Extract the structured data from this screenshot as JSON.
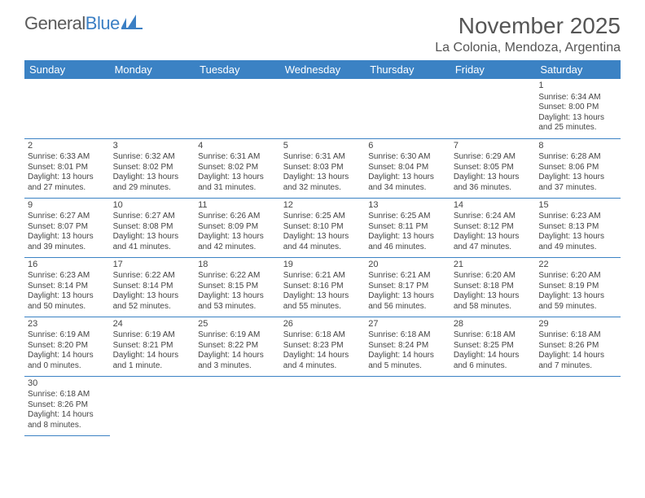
{
  "brand": {
    "part1": "General",
    "part2": "Blue"
  },
  "title": "November 2025",
  "location": "La Colonia, Mendoza, Argentina",
  "colors": {
    "header_bg": "#3b82c4",
    "header_text": "#ffffff",
    "cell_border": "#3b82c4",
    "text": "#444444",
    "title_text": "#555555",
    "background": "#ffffff"
  },
  "typography": {
    "title_fontsize": 28,
    "location_fontsize": 16,
    "header_fontsize": 13,
    "cell_fontsize": 10,
    "daynum_fontsize": 11
  },
  "weekdays": [
    "Sunday",
    "Monday",
    "Tuesday",
    "Wednesday",
    "Thursday",
    "Friday",
    "Saturday"
  ],
  "weeks": [
    [
      null,
      null,
      null,
      null,
      null,
      null,
      {
        "day": "1",
        "sunrise": "Sunrise: 6:34 AM",
        "sunset": "Sunset: 8:00 PM",
        "daylight": "Daylight: 13 hours and 25 minutes."
      }
    ],
    [
      {
        "day": "2",
        "sunrise": "Sunrise: 6:33 AM",
        "sunset": "Sunset: 8:01 PM",
        "daylight": "Daylight: 13 hours and 27 minutes."
      },
      {
        "day": "3",
        "sunrise": "Sunrise: 6:32 AM",
        "sunset": "Sunset: 8:02 PM",
        "daylight": "Daylight: 13 hours and 29 minutes."
      },
      {
        "day": "4",
        "sunrise": "Sunrise: 6:31 AM",
        "sunset": "Sunset: 8:02 PM",
        "daylight": "Daylight: 13 hours and 31 minutes."
      },
      {
        "day": "5",
        "sunrise": "Sunrise: 6:31 AM",
        "sunset": "Sunset: 8:03 PM",
        "daylight": "Daylight: 13 hours and 32 minutes."
      },
      {
        "day": "6",
        "sunrise": "Sunrise: 6:30 AM",
        "sunset": "Sunset: 8:04 PM",
        "daylight": "Daylight: 13 hours and 34 minutes."
      },
      {
        "day": "7",
        "sunrise": "Sunrise: 6:29 AM",
        "sunset": "Sunset: 8:05 PM",
        "daylight": "Daylight: 13 hours and 36 minutes."
      },
      {
        "day": "8",
        "sunrise": "Sunrise: 6:28 AM",
        "sunset": "Sunset: 8:06 PM",
        "daylight": "Daylight: 13 hours and 37 minutes."
      }
    ],
    [
      {
        "day": "9",
        "sunrise": "Sunrise: 6:27 AM",
        "sunset": "Sunset: 8:07 PM",
        "daylight": "Daylight: 13 hours and 39 minutes."
      },
      {
        "day": "10",
        "sunrise": "Sunrise: 6:27 AM",
        "sunset": "Sunset: 8:08 PM",
        "daylight": "Daylight: 13 hours and 41 minutes."
      },
      {
        "day": "11",
        "sunrise": "Sunrise: 6:26 AM",
        "sunset": "Sunset: 8:09 PM",
        "daylight": "Daylight: 13 hours and 42 minutes."
      },
      {
        "day": "12",
        "sunrise": "Sunrise: 6:25 AM",
        "sunset": "Sunset: 8:10 PM",
        "daylight": "Daylight: 13 hours and 44 minutes."
      },
      {
        "day": "13",
        "sunrise": "Sunrise: 6:25 AM",
        "sunset": "Sunset: 8:11 PM",
        "daylight": "Daylight: 13 hours and 46 minutes."
      },
      {
        "day": "14",
        "sunrise": "Sunrise: 6:24 AM",
        "sunset": "Sunset: 8:12 PM",
        "daylight": "Daylight: 13 hours and 47 minutes."
      },
      {
        "day": "15",
        "sunrise": "Sunrise: 6:23 AM",
        "sunset": "Sunset: 8:13 PM",
        "daylight": "Daylight: 13 hours and 49 minutes."
      }
    ],
    [
      {
        "day": "16",
        "sunrise": "Sunrise: 6:23 AM",
        "sunset": "Sunset: 8:14 PM",
        "daylight": "Daylight: 13 hours and 50 minutes."
      },
      {
        "day": "17",
        "sunrise": "Sunrise: 6:22 AM",
        "sunset": "Sunset: 8:14 PM",
        "daylight": "Daylight: 13 hours and 52 minutes."
      },
      {
        "day": "18",
        "sunrise": "Sunrise: 6:22 AM",
        "sunset": "Sunset: 8:15 PM",
        "daylight": "Daylight: 13 hours and 53 minutes."
      },
      {
        "day": "19",
        "sunrise": "Sunrise: 6:21 AM",
        "sunset": "Sunset: 8:16 PM",
        "daylight": "Daylight: 13 hours and 55 minutes."
      },
      {
        "day": "20",
        "sunrise": "Sunrise: 6:21 AM",
        "sunset": "Sunset: 8:17 PM",
        "daylight": "Daylight: 13 hours and 56 minutes."
      },
      {
        "day": "21",
        "sunrise": "Sunrise: 6:20 AM",
        "sunset": "Sunset: 8:18 PM",
        "daylight": "Daylight: 13 hours and 58 minutes."
      },
      {
        "day": "22",
        "sunrise": "Sunrise: 6:20 AM",
        "sunset": "Sunset: 8:19 PM",
        "daylight": "Daylight: 13 hours and 59 minutes."
      }
    ],
    [
      {
        "day": "23",
        "sunrise": "Sunrise: 6:19 AM",
        "sunset": "Sunset: 8:20 PM",
        "daylight": "Daylight: 14 hours and 0 minutes."
      },
      {
        "day": "24",
        "sunrise": "Sunrise: 6:19 AM",
        "sunset": "Sunset: 8:21 PM",
        "daylight": "Daylight: 14 hours and 1 minute."
      },
      {
        "day": "25",
        "sunrise": "Sunrise: 6:19 AM",
        "sunset": "Sunset: 8:22 PM",
        "daylight": "Daylight: 14 hours and 3 minutes."
      },
      {
        "day": "26",
        "sunrise": "Sunrise: 6:18 AM",
        "sunset": "Sunset: 8:23 PM",
        "daylight": "Daylight: 14 hours and 4 minutes."
      },
      {
        "day": "27",
        "sunrise": "Sunrise: 6:18 AM",
        "sunset": "Sunset: 8:24 PM",
        "daylight": "Daylight: 14 hours and 5 minutes."
      },
      {
        "day": "28",
        "sunrise": "Sunrise: 6:18 AM",
        "sunset": "Sunset: 8:25 PM",
        "daylight": "Daylight: 14 hours and 6 minutes."
      },
      {
        "day": "29",
        "sunrise": "Sunrise: 6:18 AM",
        "sunset": "Sunset: 8:26 PM",
        "daylight": "Daylight: 14 hours and 7 minutes."
      }
    ],
    [
      {
        "day": "30",
        "sunrise": "Sunrise: 6:18 AM",
        "sunset": "Sunset: 8:26 PM",
        "daylight": "Daylight: 14 hours and 8 minutes."
      },
      null,
      null,
      null,
      null,
      null,
      null
    ]
  ]
}
